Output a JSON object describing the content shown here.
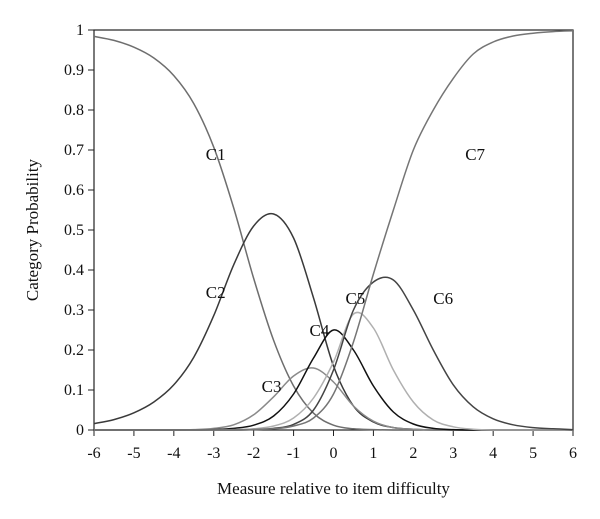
{
  "chart_data": {
    "type": "line",
    "xlabel": "Measure relative to item difficulty",
    "ylabel": "Category Probability",
    "xlim": [
      -6,
      6
    ],
    "ylim": [
      0,
      1
    ],
    "x_ticks": [
      "-6",
      "-5",
      "-4",
      "-3",
      "-2",
      "-1",
      "0",
      "1",
      "2",
      "3",
      "4",
      "5",
      "6"
    ],
    "y_ticks": [
      "0",
      "0.1",
      "0.2",
      "0.3",
      "0.4",
      "0.5",
      "0.6",
      "0.7",
      "0.8",
      "0.9",
      "1"
    ],
    "grid": false,
    "x": [
      -6,
      -5.5,
      -5,
      -4.5,
      -4,
      -3.5,
      -3,
      -2.5,
      -2,
      -1.5,
      -1,
      -0.5,
      0,
      0.5,
      1,
      1.5,
      2,
      2.5,
      3,
      3.5,
      4,
      4.5,
      5,
      5.5,
      6
    ],
    "series": [
      {
        "name": "C1",
        "color": "#6e6e6e",
        "values": [
          0.984,
          0.974,
          0.957,
          0.93,
          0.886,
          0.816,
          0.707,
          0.555,
          0.379,
          0.224,
          0.11,
          0.042,
          0.012,
          0.003,
          0.001,
          0,
          0,
          0,
          0,
          0,
          0,
          0,
          0,
          0,
          0
        ]
      },
      {
        "name": "C2",
        "color": "#3a3a3a",
        "values": [
          0.016,
          0.026,
          0.043,
          0.07,
          0.113,
          0.182,
          0.286,
          0.413,
          0.51,
          0.54,
          0.48,
          0.33,
          0.16,
          0.06,
          0.02,
          0.006,
          0.002,
          0,
          0,
          0,
          0,
          0,
          0,
          0,
          0
        ]
      },
      {
        "name": "C3",
        "color": "#8a8a8a",
        "values": [
          0,
          0,
          0,
          0,
          0,
          0.001,
          0.004,
          0.013,
          0.038,
          0.083,
          0.135,
          0.155,
          0.12,
          0.06,
          0.022,
          0.006,
          0.002,
          0,
          0,
          0,
          0,
          0,
          0,
          0,
          0
        ]
      },
      {
        "name": "C4",
        "color": "#111111",
        "values": [
          0,
          0,
          0,
          0,
          0,
          0,
          0.001,
          0.004,
          0.012,
          0.035,
          0.09,
          0.18,
          0.25,
          0.2,
          0.11,
          0.045,
          0.015,
          0.004,
          0.001,
          0,
          0,
          0,
          0,
          0,
          0
        ]
      },
      {
        "name": "C5",
        "color": "#b0b0b0",
        "values": [
          0,
          0,
          0,
          0,
          0,
          0,
          0,
          0.001,
          0.003,
          0.01,
          0.03,
          0.08,
          0.17,
          0.29,
          0.255,
          0.15,
          0.07,
          0.025,
          0.008,
          0.002,
          0,
          0,
          0,
          0,
          0
        ]
      },
      {
        "name": "C6",
        "color": "#444444",
        "values": [
          0,
          0,
          0,
          0,
          0,
          0,
          0,
          0,
          0.001,
          0.004,
          0.014,
          0.05,
          0.15,
          0.3,
          0.37,
          0.375,
          0.3,
          0.2,
          0.113,
          0.058,
          0.028,
          0.013,
          0.006,
          0.003,
          0.001
        ]
      },
      {
        "name": "C7",
        "color": "#757575",
        "values": [
          0,
          0,
          0,
          0,
          0,
          0,
          0,
          0,
          0.001,
          0.003,
          0.01,
          0.03,
          0.09,
          0.22,
          0.39,
          0.55,
          0.7,
          0.8,
          0.879,
          0.94,
          0.97,
          0.985,
          0.992,
          0.996,
          0.998
        ]
      }
    ],
    "annotations": [
      {
        "text": "C1",
        "x": -3.2,
        "y": 0.675
      },
      {
        "text": "C2",
        "x": -3.2,
        "y": 0.33
      },
      {
        "text": "C3",
        "x": -1.8,
        "y": 0.095
      },
      {
        "text": "C4",
        "x": -0.6,
        "y": 0.235
      },
      {
        "text": "C5",
        "x": 0.3,
        "y": 0.315
      },
      {
        "text": "C6",
        "x": 2.5,
        "y": 0.315
      },
      {
        "text": "C7",
        "x": 3.3,
        "y": 0.675
      }
    ]
  }
}
